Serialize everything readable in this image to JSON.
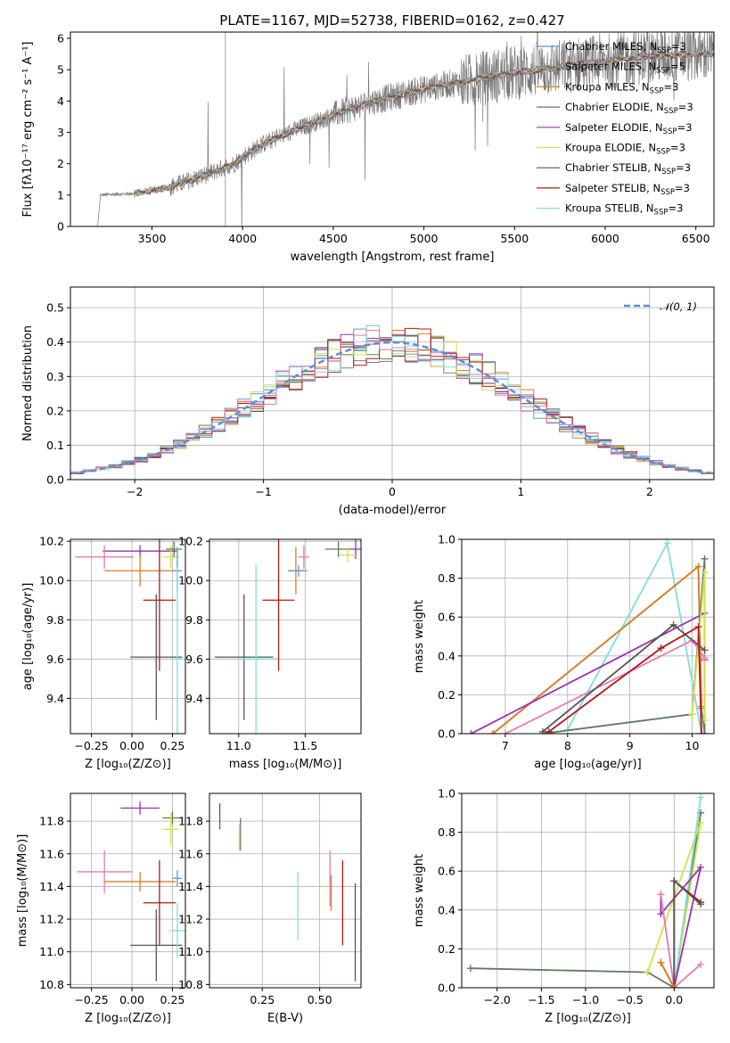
{
  "title": "PLATE=1167, MJD=52738, FIBERID=0162, z=0.427",
  "colors": {
    "chabrier_miles": "#5b9bd5",
    "salpeter_miles": "#808080",
    "kroupa_miles": "#e07b20",
    "chabrier_elodie": "#5a7d5a",
    "salpeter_elodie": "#9b30b0",
    "kroupa_elodie": "#d4e04a",
    "chabrier_stelib": "#555555",
    "salpeter_stelib": "#b01818",
    "kroupa_stelib": "#80dde0",
    "pink": "#e87ab0",
    "normal": "#5b8fd8",
    "grid": "#b0b0b0"
  },
  "chart_data": [
    {
      "id": "spectrum",
      "type": "line",
      "xlabel": "wavelength [Angstrom, rest frame]",
      "ylabel": "Flux [fλ10⁻¹⁷ erg cm⁻² s⁻¹ A⁻¹]",
      "xlim": [
        3050,
        6600
      ],
      "ylim": [
        0,
        6.2
      ],
      "xticks": [
        "3500",
        "4000",
        "4500",
        "5000",
        "5500",
        "6000",
        "6500"
      ],
      "yticks": [
        "0",
        "1",
        "2",
        "3",
        "4",
        "5",
        "6"
      ],
      "grid": false,
      "legend_position": "top-right",
      "legend": [
        "Chabrier MILES, N_SSP=3",
        "Salpeter MILES, N_SSP=5",
        "Kroupa MILES, N_SSP=3",
        "Chabrier ELODIE, N_SSP=3",
        "Salpeter ELODIE, N_SSP=3",
        "Kroupa ELODIE, N_SSP=3",
        "Chabrier STELIB, N_SSP=3",
        "Salpeter STELIB, N_SSP=3",
        "Kroupa STELIB, N_SSP=3"
      ],
      "model_continuum": {
        "x": [
          3200,
          3400,
          3600,
          3800,
          3950,
          4100,
          4300,
          4500,
          4700,
          4900,
          5100,
          5300,
          5500,
          5700,
          5900,
          6100,
          6300,
          6500
        ],
        "y": [
          1.0,
          1.05,
          1.25,
          1.65,
          2.0,
          2.6,
          3.1,
          3.55,
          3.95,
          4.25,
          4.5,
          4.7,
          4.9,
          5.05,
          5.2,
          5.35,
          5.45,
          5.5
        ]
      }
    },
    {
      "id": "residuals",
      "type": "histogram",
      "xlabel": "(data-model)/error",
      "ylabel": "Normed distribution",
      "xlim": [
        -2.5,
        2.5
      ],
      "ylim": [
        0,
        0.56
      ],
      "xticks": [
        "−2",
        "−1",
        "0",
        "1",
        "2"
      ],
      "yticks": [
        "0.0",
        "0.1",
        "0.2",
        "0.3",
        "0.4",
        "0.5"
      ],
      "grid": true,
      "legend": [
        "𝒩(0, 1)"
      ],
      "legend_position": "top-right",
      "bin_width": 0.1
    },
    {
      "id": "age_vs_Z",
      "type": "scatter",
      "xlabel": "Z [log₁₀(Z/Z⊙)]",
      "ylabel": "age  [log₁₀(age/yr)]",
      "xlim": [
        -0.38,
        0.33
      ],
      "ylim": [
        9.22,
        10.21
      ],
      "xticks": [
        "−0.25",
        "0.00",
        "0.25"
      ],
      "yticks": [
        "9.4",
        "9.6",
        "9.8",
        "10.0",
        "10.2"
      ],
      "grid": true,
      "points": [
        {
          "x": 0.05,
          "y": 10.15,
          "xerr": 0.23,
          "yerr": 0.03,
          "color": "salpeter_elodie"
        },
        {
          "x": -0.17,
          "y": 10.12,
          "xerr": 0.18,
          "yerr": 0.06,
          "color": "pink"
        },
        {
          "x": 0.24,
          "y": 10.12,
          "xerr": 0.05,
          "yerr": 0.06,
          "color": "kroupa_elodie"
        },
        {
          "x": 0.26,
          "y": 10.16,
          "xerr": 0.05,
          "yerr": 0.04,
          "color": "chabrier_elodie"
        },
        {
          "x": 0.05,
          "y": 10.05,
          "xerr": 0.22,
          "yerr": 0.08,
          "color": "kroupa_miles"
        },
        {
          "x": 0.28,
          "y": 10.05,
          "xerr": 0.03,
          "yerr": 0.12,
          "color": "chabrier_miles"
        },
        {
          "x": 0.17,
          "y": 9.9,
          "xerr": 0.1,
          "yerr": 0.36,
          "color": "salpeter_stelib"
        },
        {
          "x": 0.15,
          "y": 9.61,
          "xerr": 0.16,
          "yerr": 0.32,
          "color": "chabrier_stelib"
        },
        {
          "x": 0.28,
          "y": 9.6,
          "xerr": 0.05,
          "yerr": 0.47,
          "color": "kroupa_stelib"
        }
      ]
    },
    {
      "id": "age_vs_mass",
      "type": "scatter",
      "xlabel": "mass [log₁₀(M/M⊙)]",
      "ylabel": "",
      "xlim": [
        10.78,
        11.92
      ],
      "ylim": [
        9.22,
        10.21
      ],
      "xticks": [
        "11.0",
        "11.5"
      ],
      "yticks": [
        "9.4",
        "9.6",
        "9.8",
        "10.0",
        "10.2"
      ],
      "grid": true,
      "points": [
        {
          "x": 11.88,
          "y": 10.16,
          "xerr": 0.06,
          "yerr": 0.05,
          "color": "salpeter_elodie"
        },
        {
          "x": 11.75,
          "y": 10.16,
          "xerr": 0.1,
          "yerr": 0.04,
          "color": "chabrier_elodie"
        },
        {
          "x": 11.82,
          "y": 10.13,
          "xerr": 0.06,
          "yerr": 0.04,
          "color": "kroupa_elodie"
        },
        {
          "x": 11.49,
          "y": 10.12,
          "xerr": 0.04,
          "yerr": 0.06,
          "color": "pink"
        },
        {
          "x": 11.43,
          "y": 10.05,
          "xerr": 0.06,
          "yerr": 0.12,
          "color": "kroupa_miles"
        },
        {
          "x": 11.45,
          "y": 10.05,
          "xerr": 0.07,
          "yerr": 0.03,
          "color": "chabrier_miles"
        },
        {
          "x": 11.3,
          "y": 9.9,
          "xerr": 0.12,
          "yerr": 0.36,
          "color": "salpeter_stelib"
        },
        {
          "x": 11.04,
          "y": 9.61,
          "xerr": 0.22,
          "yerr": 0.32,
          "color": "chabrier_stelib"
        },
        {
          "x": 11.13,
          "y": 9.6,
          "xerr": 0.16,
          "yerr": 0.48,
          "color": "kroupa_stelib"
        }
      ]
    },
    {
      "id": "weight_vs_age",
      "type": "line",
      "xlabel": "age  [log₁₀(age/yr)]",
      "ylabel": "mass weight",
      "xlim": [
        6.3,
        10.35
      ],
      "ylim": [
        0,
        1.0
      ],
      "xticks": [
        "7",
        "8",
        "9",
        "10"
      ],
      "yticks": [
        "0.0",
        "0.2",
        "0.4",
        "0.6",
        "0.8",
        "1.0"
      ],
      "grid": true,
      "series": [
        {
          "color": "kroupa_stelib",
          "x": [
            8.0,
            9.6,
            10.15
          ],
          "y": [
            0.02,
            0.98,
            0.0
          ]
        },
        {
          "color": "salpeter_miles",
          "x": [
            6.8,
            10.1,
            10.15,
            10.2
          ],
          "y": [
            0.0,
            0.86,
            0.13,
            0.0
          ]
        },
        {
          "color": "kroupa_miles",
          "x": [
            6.8,
            10.1,
            10.15
          ],
          "y": [
            0.0,
            0.86,
            0.14
          ]
        },
        {
          "color": "chabrier_elodie",
          "x": [
            7.6,
            10.0,
            10.2,
            10.2
          ],
          "y": [
            0.0,
            0.1,
            0.9,
            0.0
          ]
        },
        {
          "color": "salpeter_elodie",
          "x": [
            6.45,
            10.2,
            10.2
          ],
          "y": [
            0.0,
            0.62,
            0.38
          ]
        },
        {
          "color": "kroupa_elodie",
          "x": [
            10.0,
            10.2,
            10.2
          ],
          "y": [
            0.1,
            0.83,
            0.07
          ]
        },
        {
          "color": "pink",
          "x": [
            7.0,
            10.0,
            10.2
          ],
          "y": [
            0.0,
            0.48,
            0.39
          ]
        },
        {
          "color": "chabrier_stelib",
          "x": [
            7.6,
            9.7,
            10.2
          ],
          "y": [
            0.01,
            0.56,
            0.43
          ]
        },
        {
          "color": "salpeter_stelib",
          "x": [
            7.7,
            9.5,
            10.1,
            10.15
          ],
          "y": [
            0.01,
            0.44,
            0.55,
            0.0
          ]
        }
      ]
    },
    {
      "id": "mass_vs_Z",
      "type": "scatter",
      "xlabel": "Z [log₁₀(Z/Z⊙)]",
      "ylabel": "mass [log₁₀(M/M⊙)]",
      "xlim": [
        -0.38,
        0.33
      ],
      "ylim": [
        10.78,
        11.97
      ],
      "xticks": [
        "−0.25",
        "0.00",
        "0.25"
      ],
      "yticks": [
        "10.8",
        "11.0",
        "11.2",
        "11.4",
        "11.6",
        "11.8"
      ],
      "grid": true,
      "points": [
        {
          "x": 0.05,
          "y": 11.88,
          "xerr": 0.12,
          "yerr": 0.04,
          "color": "salpeter_elodie"
        },
        {
          "x": 0.25,
          "y": 11.82,
          "xerr": 0.06,
          "yerr": 0.04,
          "color": "chabrier_elodie"
        },
        {
          "x": 0.24,
          "y": 11.75,
          "xerr": 0.05,
          "yerr": 0.1,
          "color": "kroupa_elodie"
        },
        {
          "x": -0.17,
          "y": 11.49,
          "xerr": 0.17,
          "yerr": 0.13,
          "color": "pink"
        },
        {
          "x": 0.05,
          "y": 11.43,
          "xerr": 0.22,
          "yerr": 0.06,
          "color": "kroupa_miles"
        },
        {
          "x": 0.28,
          "y": 11.45,
          "xerr": 0.03,
          "yerr": 0.05,
          "color": "chabrier_miles"
        },
        {
          "x": 0.17,
          "y": 11.3,
          "xerr": 0.1,
          "yerr": 0.26,
          "color": "salpeter_stelib"
        },
        {
          "x": 0.15,
          "y": 11.04,
          "xerr": 0.16,
          "yerr": 0.22,
          "color": "chabrier_stelib"
        },
        {
          "x": 0.28,
          "y": 11.13,
          "xerr": 0.05,
          "yerr": 0.17,
          "color": "kroupa_stelib"
        }
      ]
    },
    {
      "id": "mass_vs_ebv",
      "type": "scatter",
      "xlabel": "E(B-V)",
      "ylabel": "",
      "xlim": [
        0.02,
        0.68
      ],
      "ylim": [
        10.78,
        11.97
      ],
      "xticks": [
        "0.25",
        "0.50"
      ],
      "yticks": [
        "10.8",
        "11.0",
        "11.2",
        "11.4",
        "11.6",
        "11.8"
      ],
      "grid": true,
      "points": [
        {
          "x": 0.065,
          "y": 11.83,
          "xerr": 0.0,
          "yerr": 0.08,
          "color": "salpeter_elodie"
        },
        {
          "x": 0.155,
          "y": 11.72,
          "xerr": 0.0,
          "yerr": 0.1,
          "color": "chabrier_elodie"
        },
        {
          "x": 0.15,
          "y": 11.7,
          "xerr": 0.0,
          "yerr": 0.08,
          "color": "kroupa_elodie"
        },
        {
          "x": 0.405,
          "y": 11.28,
          "xerr": 0.0,
          "yerr": 0.21,
          "color": "kroupa_stelib"
        },
        {
          "x": 0.545,
          "y": 11.45,
          "xerr": 0.0,
          "yerr": 0.17,
          "color": "pink"
        },
        {
          "x": 0.55,
          "y": 11.36,
          "xerr": 0.0,
          "yerr": 0.11,
          "color": "kroupa_miles"
        },
        {
          "x": 0.6,
          "y": 11.3,
          "xerr": 0.0,
          "yerr": 0.26,
          "color": "salpeter_stelib"
        },
        {
          "x": 0.655,
          "y": 11.12,
          "xerr": 0.0,
          "yerr": 0.3,
          "color": "chabrier_stelib"
        }
      ]
    },
    {
      "id": "weight_vs_Z",
      "type": "line",
      "xlabel": "Z [log₁₀(Z/Z⊙)]",
      "ylabel": "mass weight",
      "xlim": [
        -2.4,
        0.45
      ],
      "ylim": [
        0,
        1.0
      ],
      "xticks": [
        "−2.0",
        "−1.5",
        "−1.0",
        "−0.5",
        "0.0"
      ],
      "yticks": [
        "0.0",
        "0.2",
        "0.4",
        "0.6",
        "0.8",
        "1.0"
      ],
      "grid": true,
      "series": [
        {
          "color": "chabrier_elodie",
          "x": [
            -2.3,
            -0.3,
            0.0,
            0.3
          ],
          "y": [
            0.1,
            0.08,
            0.0,
            0.9
          ]
        },
        {
          "color": "kroupa_elodie",
          "x": [
            -0.3,
            0.3,
            0.0
          ],
          "y": [
            0.08,
            0.85,
            0.0
          ]
        },
        {
          "color": "kroupa_stelib",
          "x": [
            0.0,
            0.3
          ],
          "y": [
            0.0,
            0.98
          ]
        },
        {
          "color": "salpeter_elodie",
          "x": [
            -0.15,
            -0.15,
            0.3,
            0.0
          ],
          "y": [
            0.48,
            0.38,
            0.62,
            0.0
          ]
        },
        {
          "color": "pink",
          "x": [
            -0.15,
            0.0,
            0.3
          ],
          "y": [
            0.48,
            0.0,
            0.12
          ]
        },
        {
          "color": "salpeter_stelib",
          "x": [
            0.0,
            0.0,
            0.3
          ],
          "y": [
            0.0,
            0.55,
            0.44
          ]
        },
        {
          "color": "chabrier_stelib",
          "x": [
            -0.15,
            0.0,
            0.0,
            0.3
          ],
          "y": [
            0.13,
            0.0,
            0.55,
            0.43
          ]
        },
        {
          "color": "kroupa_miles",
          "x": [
            -0.15,
            0.0
          ],
          "y": [
            0.13,
            0.0
          ]
        }
      ]
    }
  ]
}
